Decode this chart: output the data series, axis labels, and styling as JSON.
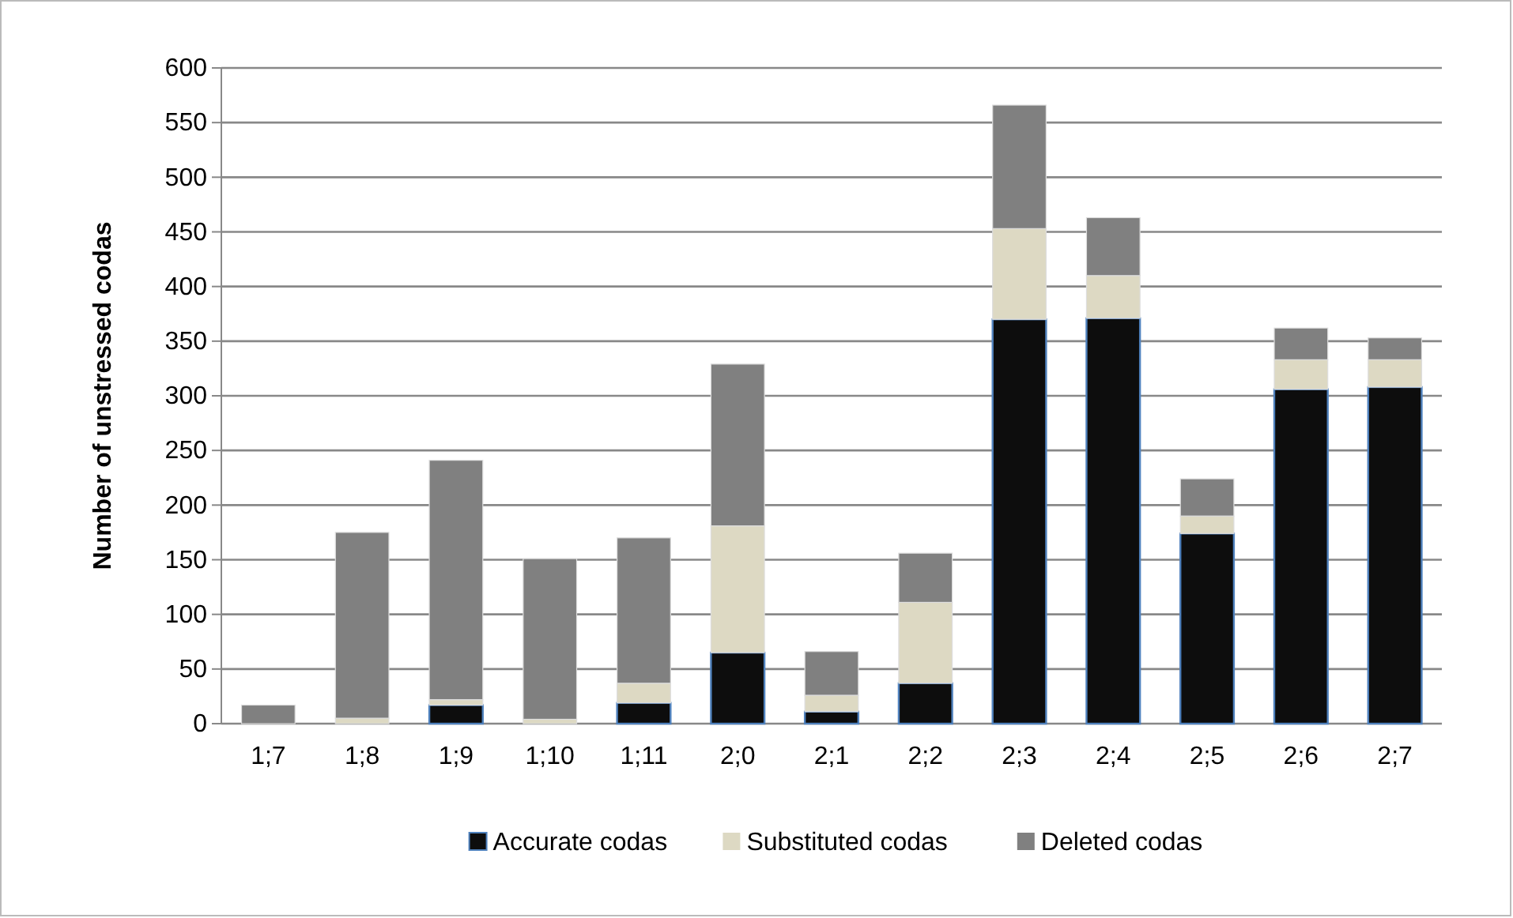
{
  "chart_data": {
    "type": "bar",
    "stacked": true,
    "ylabel": "Number of unstressed codas",
    "categories": [
      "1;7",
      "1;8",
      "1;9",
      "1;10",
      "1;11",
      "2;0",
      "2;1",
      "2;2",
      "2;3",
      "2;4",
      "2;5",
      "2;6",
      "2;7"
    ],
    "series": [
      {
        "name": "Accurate codas",
        "color": "#0d0d0d",
        "values": [
          0,
          0,
          17,
          0,
          19,
          65,
          11,
          37,
          370,
          371,
          174,
          306,
          308
        ]
      },
      {
        "name": "Substituted codas",
        "color": "#ddd9c3",
        "values": [
          0,
          5,
          5,
          4,
          18,
          116,
          15,
          74,
          83,
          39,
          16,
          27,
          25
        ]
      },
      {
        "name": "Deleted codas",
        "color": "#808080",
        "values": [
          17,
          170,
          219,
          147,
          133,
          148,
          40,
          45,
          113,
          53,
          34,
          29,
          20
        ]
      }
    ],
    "ylim": [
      0,
      600
    ],
    "yticks": [
      0,
      50,
      100,
      150,
      200,
      250,
      300,
      350,
      400,
      450,
      500,
      550,
      600
    ],
    "grid": "y",
    "legend": "bottom"
  }
}
